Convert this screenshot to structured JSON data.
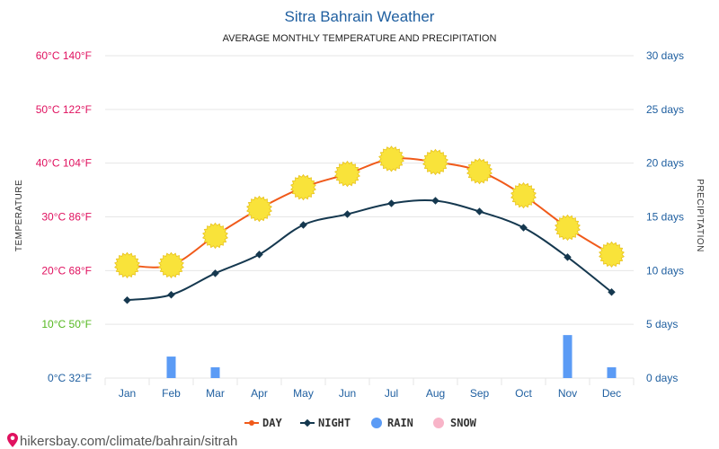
{
  "header": {
    "title": "Sitra Bahrain Weather",
    "subtitle": "AVERAGE MONTHLY TEMPERATURE AND PRECIPITATION"
  },
  "footer": {
    "url_text": "hikersbay.com/climate/bahrain/sitrah"
  },
  "legend": {
    "day_label": "DAY",
    "night_label": "NIGHT",
    "rain_label": "RAIN",
    "snow_label": "SNOW"
  },
  "colors": {
    "day": "#f05a1a",
    "night": "#15384f",
    "rain": "#5b9bf5",
    "snow": "#f8b4c8",
    "sun_fill": "#f9e33a",
    "sun_stroke": "#e8c21e",
    "left_tick_hot": "#e0115f",
    "left_tick_mild": "#55b820",
    "left_tick_cold": "#1f5fa0",
    "right_tick": "#1f5fa0",
    "month_tick": "#1f5fa0",
    "grid": "#e6e6e6"
  },
  "chart_data": {
    "type": "line",
    "categories": [
      "Jan",
      "Feb",
      "Mar",
      "Apr",
      "May",
      "Jun",
      "Jul",
      "Aug",
      "Sep",
      "Oct",
      "Nov",
      "Dec"
    ],
    "series": [
      {
        "name": "DAY",
        "unit": "°C",
        "values": [
          21,
          21,
          26.5,
          31.5,
          35.5,
          38,
          40.8,
          40.2,
          38.5,
          34,
          28,
          23
        ]
      },
      {
        "name": "NIGHT",
        "unit": "°C",
        "values": [
          14.5,
          15.5,
          19.5,
          23,
          28.5,
          30.5,
          32.5,
          33,
          31,
          28,
          22.5,
          16
        ]
      },
      {
        "name": "RAIN",
        "unit": "days",
        "type": "bar",
        "values": [
          0,
          2,
          1,
          0,
          0,
          0,
          0,
          0,
          0,
          0,
          4,
          1
        ]
      },
      {
        "name": "SNOW",
        "unit": "days",
        "type": "bar",
        "values": [
          0,
          0,
          0,
          0,
          0,
          0,
          0,
          0,
          0,
          0,
          0,
          0
        ]
      }
    ],
    "ylabel": "TEMPERATURE",
    "y2label": "PRECIPITATION",
    "ylim": [
      0,
      60
    ],
    "y2lim": [
      0,
      30
    ],
    "y_ticks": [
      {
        "value": 60,
        "label": "60°C 140°F"
      },
      {
        "value": 50,
        "label": "50°C 122°F"
      },
      {
        "value": 40,
        "label": "40°C 104°F"
      },
      {
        "value": 30,
        "label": "30°C 86°F"
      },
      {
        "value": 20,
        "label": "20°C 68°F"
      },
      {
        "value": 10,
        "label": "10°C 50°F"
      },
      {
        "value": 0,
        "label": "0°C 32°F"
      }
    ],
    "y2_ticks": [
      {
        "value": 30,
        "label": "30 days"
      },
      {
        "value": 25,
        "label": "25 days"
      },
      {
        "value": 20,
        "label": "20 days"
      },
      {
        "value": 15,
        "label": "15 days"
      },
      {
        "value": 10,
        "label": "10 days"
      },
      {
        "value": 5,
        "label": "5 days"
      },
      {
        "value": 0,
        "label": "0 days"
      }
    ],
    "grid": true,
    "legend_position": "bottom"
  }
}
